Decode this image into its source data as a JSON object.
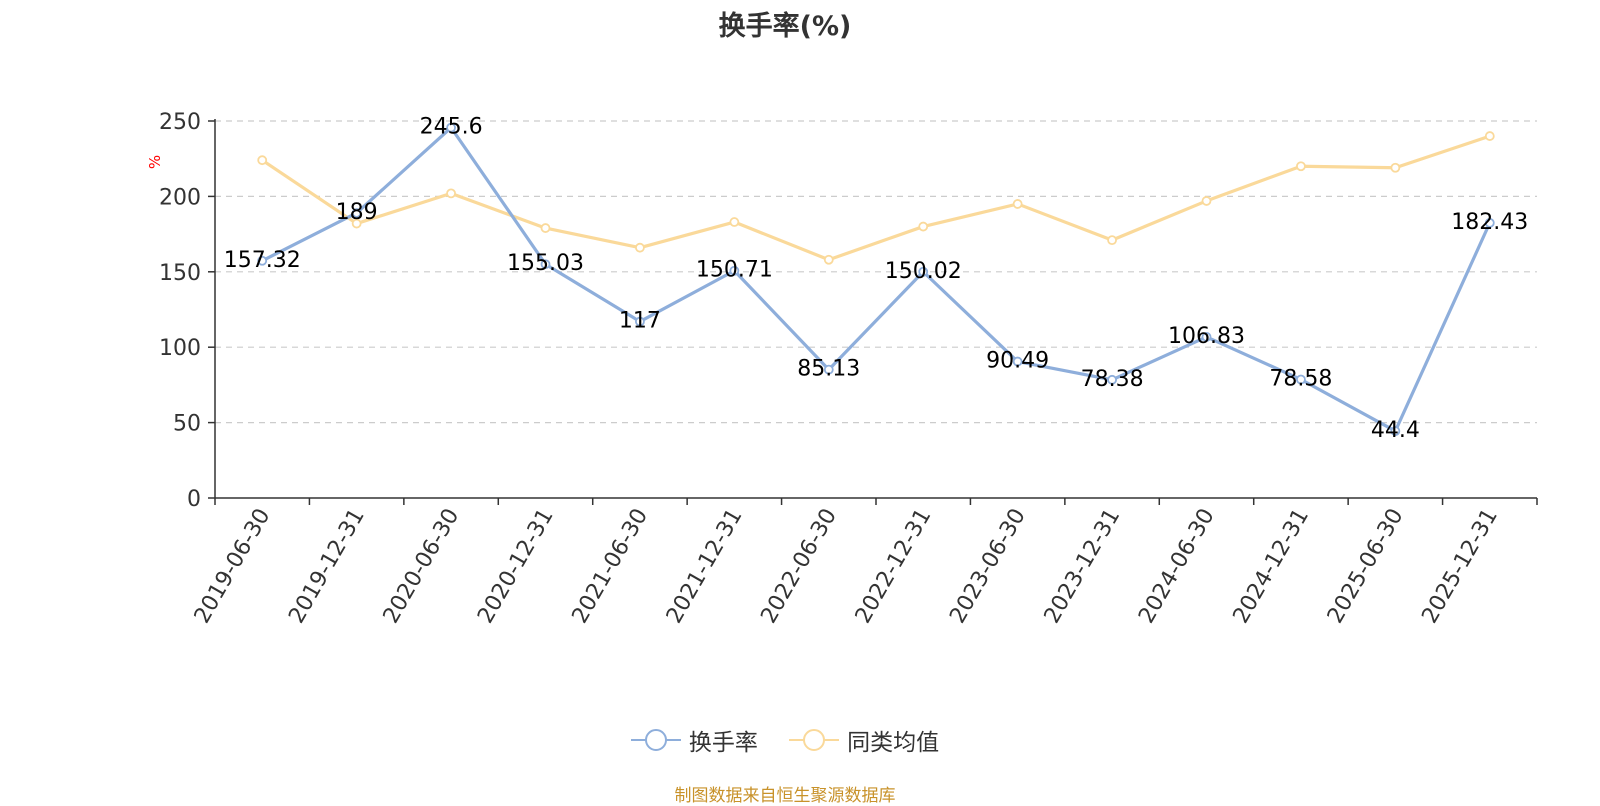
{
  "title": "换手率(%)",
  "source": "制图数据来自恒生聚源数据库",
  "colors": {
    "series1": "#8eaedb",
    "series2": "#fad99a",
    "grid": "#cccccc",
    "axis": "#333333",
    "unit": "#ff0000",
    "source": "#c8922a"
  },
  "chart_data": {
    "type": "line",
    "title": "换手率(%)",
    "ylabel": "%",
    "xlabel": "",
    "ylim": [
      0,
      250
    ],
    "yticks": [
      0,
      50,
      100,
      150,
      200,
      250
    ],
    "grid": true,
    "legend_position": "bottom-center",
    "categories": [
      "2019-06-30",
      "2019-12-31",
      "2020-06-30",
      "2020-12-31",
      "2021-06-30",
      "2021-12-31",
      "2022-06-30",
      "2022-12-31",
      "2023-06-30",
      "2023-12-31",
      "2024-06-30",
      "2024-12-31",
      "2025-06-30",
      "2025-12-31"
    ],
    "series": [
      {
        "name": "换手率",
        "color": "#8eaedb",
        "show_labels": true,
        "values": [
          157.32,
          189,
          245.6,
          155.03,
          117,
          150.71,
          85.13,
          150.02,
          90.49,
          78.38,
          106.83,
          78.58,
          44.4,
          182.43
        ]
      },
      {
        "name": "同类均值",
        "color": "#fad99a",
        "show_labels": false,
        "values": [
          224,
          182,
          202,
          179,
          166,
          183,
          158,
          180,
          195,
          171,
          197,
          220,
          219,
          240
        ]
      }
    ]
  }
}
